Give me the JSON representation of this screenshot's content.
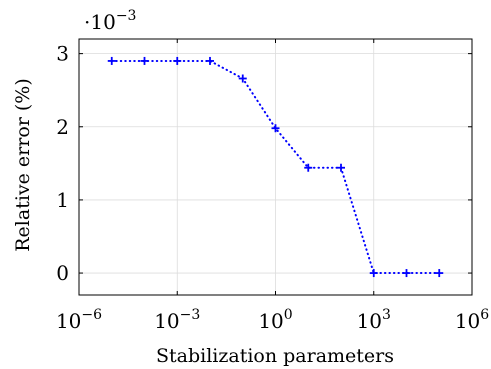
{
  "chart_data": {
    "type": "line",
    "xlabel": "Stabilization parameters",
    "ylabel": "Relative error (%)",
    "y_scale_factor": {
      "base": "·10",
      "exponent": "−3"
    },
    "x_scale": "log",
    "xlim": [
      1e-06,
      1000000
    ],
    "ylim": [
      -0.0003,
      0.0032
    ],
    "grid": true,
    "x_ticks": [
      {
        "value": 1e-06,
        "base": "10",
        "exp": "−6"
      },
      {
        "value": 0.001,
        "base": "10",
        "exp": "−3"
      },
      {
        "value": 1,
        "base": "10",
        "exp": "0"
      },
      {
        "value": 1000,
        "base": "10",
        "exp": "3"
      },
      {
        "value": 1000000,
        "base": "10",
        "exp": "6"
      }
    ],
    "y_ticks": [
      {
        "value": 0,
        "label": "0"
      },
      {
        "value": 0.001,
        "label": "1"
      },
      {
        "value": 0.002,
        "label": "2"
      },
      {
        "value": 0.003,
        "label": "3"
      }
    ],
    "series": [
      {
        "color": "#0000ff",
        "line_style": "dotted",
        "marker": "plus",
        "x": [
          1e-05,
          0.0001,
          0.001,
          0.01,
          0.1,
          1,
          10,
          100,
          1000,
          10000,
          100000
        ],
        "y": [
          0.0029,
          0.0029,
          0.0029,
          0.0029,
          0.00266,
          0.00198,
          0.00144,
          0.00144,
          0.0,
          0.0,
          0.0
        ]
      }
    ]
  }
}
